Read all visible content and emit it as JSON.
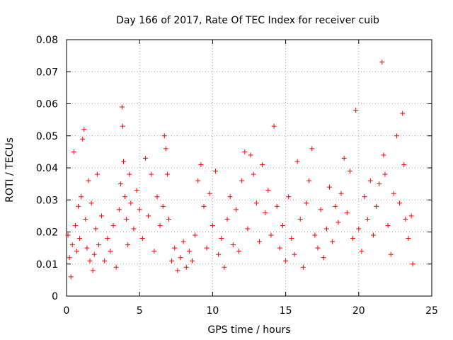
{
  "chart_data": {
    "type": "scatter",
    "title": "Day 166 of 2017, Rate Of TEC Index for receiver cuib",
    "xlabel": "GPS time / hours",
    "ylabel": "ROTI / TECUs",
    "xlim": [
      0,
      25
    ],
    "ylim": [
      0,
      0.08
    ],
    "xticks": [
      "0",
      "5",
      "10",
      "15",
      "20",
      "25"
    ],
    "yticks": [
      "0",
      "0.01",
      "0.02",
      "0.03",
      "0.04",
      "0.05",
      "0.06",
      "0.07",
      "0.08"
    ],
    "grid": true,
    "marker": "+",
    "series_color": "#ff0000",
    "points": [
      [
        0.1,
        0.019
      ],
      [
        0.2,
        0.012
      ],
      [
        0.3,
        0.006
      ],
      [
        0.4,
        0.016
      ],
      [
        0.5,
        0.045
      ],
      [
        0.6,
        0.022
      ],
      [
        0.7,
        0.014
      ],
      [
        0.8,
        0.028
      ],
      [
        0.9,
        0.018
      ],
      [
        1.0,
        0.031
      ],
      [
        1.1,
        0.049
      ],
      [
        1.2,
        0.052
      ],
      [
        1.3,
        0.024
      ],
      [
        1.4,
        0.015
      ],
      [
        1.5,
        0.036
      ],
      [
        1.6,
        0.011
      ],
      [
        1.7,
        0.029
      ],
      [
        1.8,
        0.008
      ],
      [
        1.9,
        0.013
      ],
      [
        2.0,
        0.021
      ],
      [
        2.1,
        0.038
      ],
      [
        2.2,
        0.016
      ],
      [
        2.4,
        0.025
      ],
      [
        2.6,
        0.011
      ],
      [
        2.8,
        0.018
      ],
      [
        3.0,
        0.014
      ],
      [
        3.2,
        0.022
      ],
      [
        3.4,
        0.009
      ],
      [
        3.6,
        0.027
      ],
      [
        3.7,
        0.035
      ],
      [
        3.8,
        0.059
      ],
      [
        3.85,
        0.053
      ],
      [
        3.9,
        0.042
      ],
      [
        4.0,
        0.031
      ],
      [
        4.1,
        0.024
      ],
      [
        4.2,
        0.016
      ],
      [
        4.3,
        0.038
      ],
      [
        4.4,
        0.029
      ],
      [
        4.6,
        0.021
      ],
      [
        4.8,
        0.033
      ],
      [
        5.0,
        0.027
      ],
      [
        5.2,
        0.018
      ],
      [
        5.4,
        0.043
      ],
      [
        5.6,
        0.025
      ],
      [
        5.8,
        0.038
      ],
      [
        6.0,
        0.014
      ],
      [
        6.2,
        0.031
      ],
      [
        6.4,
        0.022
      ],
      [
        6.6,
        0.028
      ],
      [
        6.7,
        0.05
      ],
      [
        6.8,
        0.046
      ],
      [
        6.9,
        0.038
      ],
      [
        7.0,
        0.024
      ],
      [
        7.2,
        0.011
      ],
      [
        7.4,
        0.015
      ],
      [
        7.6,
        0.008
      ],
      [
        7.8,
        0.012
      ],
      [
        8.0,
        0.017
      ],
      [
        8.2,
        0.009
      ],
      [
        8.4,
        0.014
      ],
      [
        8.6,
        0.011
      ],
      [
        8.8,
        0.019
      ],
      [
        9.0,
        0.036
      ],
      [
        9.2,
        0.041
      ],
      [
        9.4,
        0.028
      ],
      [
        9.6,
        0.015
      ],
      [
        9.8,
        0.032
      ],
      [
        10.0,
        0.022
      ],
      [
        10.2,
        0.039
      ],
      [
        10.4,
        0.013
      ],
      [
        10.6,
        0.018
      ],
      [
        10.8,
        0.009
      ],
      [
        11.0,
        0.024
      ],
      [
        11.2,
        0.031
      ],
      [
        11.4,
        0.016
      ],
      [
        11.6,
        0.027
      ],
      [
        11.8,
        0.014
      ],
      [
        12.0,
        0.036
      ],
      [
        12.2,
        0.045
      ],
      [
        12.4,
        0.021
      ],
      [
        12.6,
        0.044
      ],
      [
        12.8,
        0.038
      ],
      [
        13.0,
        0.029
      ],
      [
        13.2,
        0.017
      ],
      [
        13.4,
        0.041
      ],
      [
        13.6,
        0.026
      ],
      [
        13.8,
        0.033
      ],
      [
        14.0,
        0.019
      ],
      [
        14.2,
        0.053
      ],
      [
        14.4,
        0.028
      ],
      [
        14.6,
        0.015
      ],
      [
        14.8,
        0.022
      ],
      [
        15.0,
        0.011
      ],
      [
        15.2,
        0.031
      ],
      [
        15.4,
        0.018
      ],
      [
        15.6,
        0.013
      ],
      [
        15.8,
        0.042
      ],
      [
        16.0,
        0.024
      ],
      [
        16.2,
        0.009
      ],
      [
        16.4,
        0.029
      ],
      [
        16.6,
        0.036
      ],
      [
        16.8,
        0.046
      ],
      [
        17.0,
        0.019
      ],
      [
        17.2,
        0.015
      ],
      [
        17.4,
        0.027
      ],
      [
        17.6,
        0.012
      ],
      [
        17.8,
        0.021
      ],
      [
        18.0,
        0.034
      ],
      [
        18.2,
        0.017
      ],
      [
        18.4,
        0.028
      ],
      [
        18.6,
        0.023
      ],
      [
        18.8,
        0.032
      ],
      [
        19.0,
        0.043
      ],
      [
        19.2,
        0.026
      ],
      [
        19.4,
        0.039
      ],
      [
        19.6,
        0.018
      ],
      [
        19.8,
        0.058
      ],
      [
        20.0,
        0.021
      ],
      [
        20.2,
        0.014
      ],
      [
        20.4,
        0.031
      ],
      [
        20.6,
        0.024
      ],
      [
        20.8,
        0.036
      ],
      [
        21.0,
        0.019
      ],
      [
        21.2,
        0.028
      ],
      [
        21.4,
        0.035
      ],
      [
        21.6,
        0.073
      ],
      [
        21.7,
        0.044
      ],
      [
        21.8,
        0.038
      ],
      [
        22.0,
        0.022
      ],
      [
        22.2,
        0.013
      ],
      [
        22.4,
        0.032
      ],
      [
        22.6,
        0.05
      ],
      [
        22.8,
        0.029
      ],
      [
        23.0,
        0.057
      ],
      [
        23.1,
        0.041
      ],
      [
        23.2,
        0.024
      ],
      [
        23.4,
        0.018
      ],
      [
        23.6,
        0.025
      ],
      [
        23.7,
        0.01
      ]
    ]
  }
}
